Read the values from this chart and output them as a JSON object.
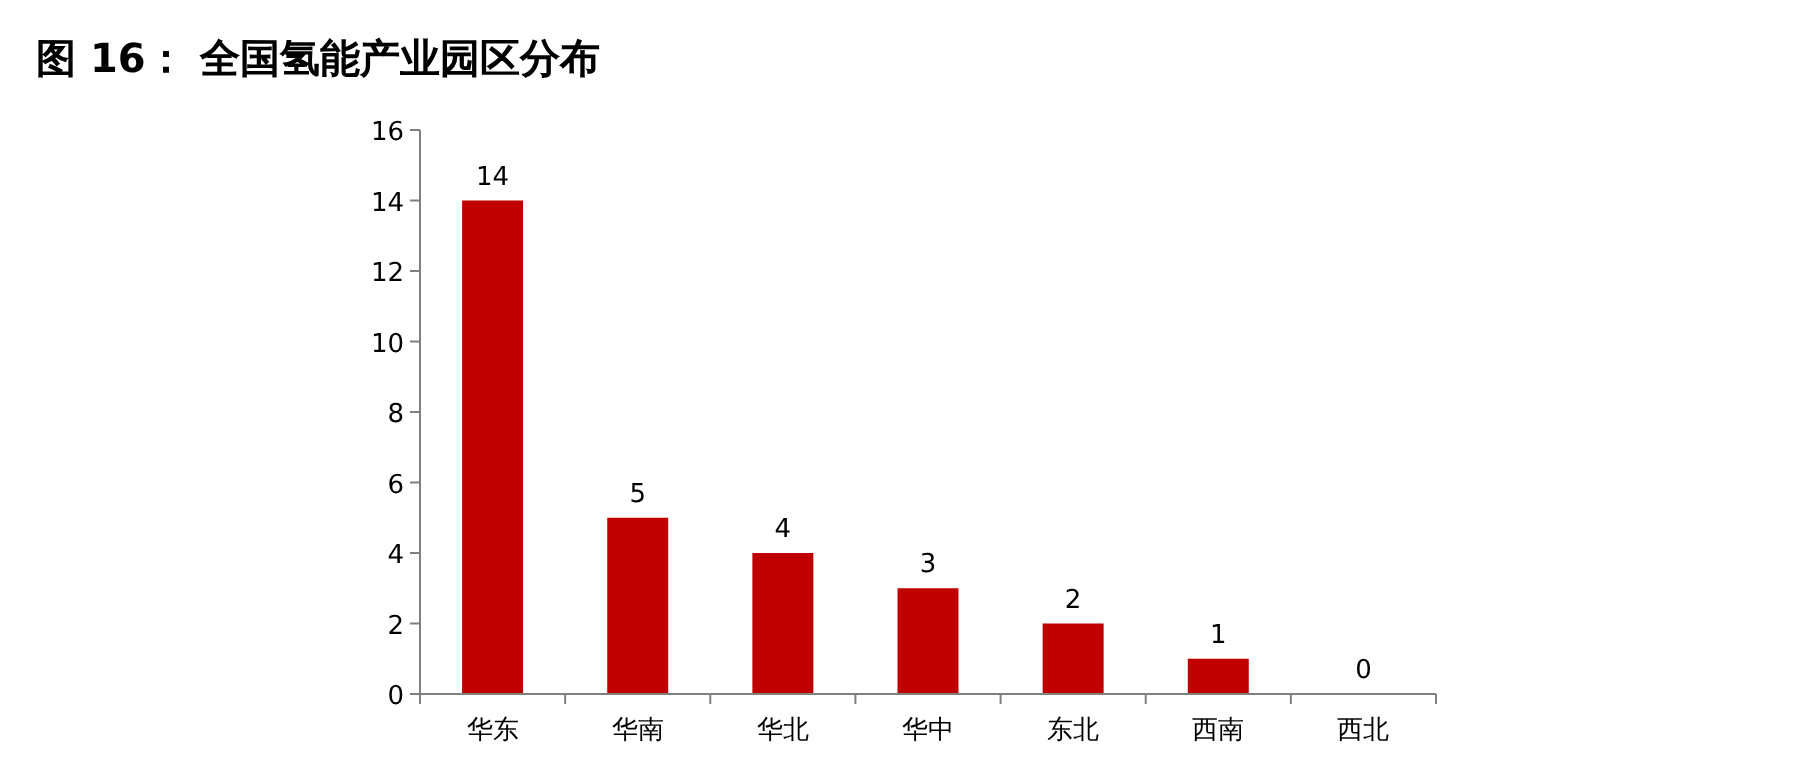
{
  "chart_data": {
    "type": "bar",
    "title": "图 16： 全国氢能产业园区分布",
    "categories": [
      "华东",
      "华南",
      "华北",
      "华中",
      "东北",
      "西南",
      "西北"
    ],
    "values": [
      14,
      5,
      4,
      3,
      2,
      1,
      0
    ],
    "color": "#c00000",
    "ylim": [
      0,
      16
    ],
    "yticks": [
      0,
      2,
      4,
      6,
      8,
      10,
      12,
      14,
      16
    ],
    "grid": false,
    "data_labels": true
  }
}
